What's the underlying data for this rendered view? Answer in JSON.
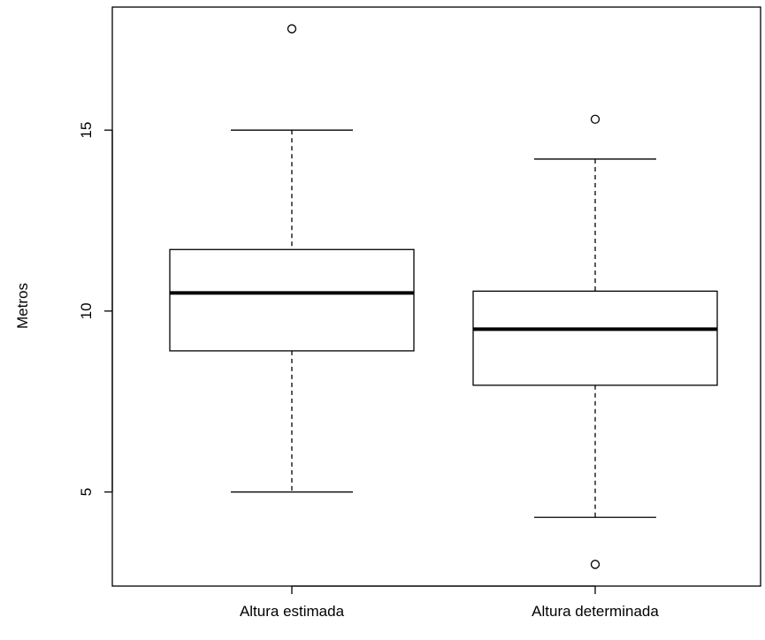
{
  "chart_data": {
    "type": "boxplot",
    "ylabel": "Metros",
    "xlabel": "",
    "title": "",
    "ylim": [
      2.4,
      18.4
    ],
    "yticks": [
      5,
      10,
      15
    ],
    "categories": [
      "Altura estimada",
      "Altura determinada"
    ],
    "boxes": [
      {
        "name": "Altura estimada",
        "whisker_low": 5.0,
        "q1": 8.9,
        "median": 10.5,
        "q3": 11.7,
        "whisker_high": 15.0,
        "outliers": [
          17.8
        ]
      },
      {
        "name": "Altura determinada",
        "whisker_low": 4.3,
        "q1": 7.95,
        "median": 9.5,
        "q3": 10.55,
        "whisker_high": 14.2,
        "outliers": [
          15.3,
          3.0
        ]
      }
    ],
    "grid": false,
    "colors": {
      "stroke": "#000000",
      "fill": "#ffffff"
    }
  }
}
